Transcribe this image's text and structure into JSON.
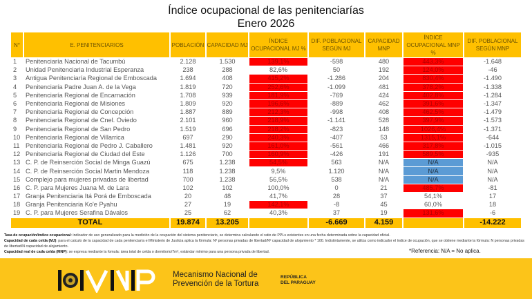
{
  "title": {
    "line1": "Índice ocupacional de las penitenciarías",
    "line2": "Enero 2026"
  },
  "headers": [
    "N°",
    "E. PENITENCIARIOS",
    "POBLACIÓN",
    "CAPACIDAD MJ",
    "ÍNDICE OCUPACIONAL MJ %",
    "DIF. POBLACIONAL SEGÚN MJ",
    "CAPACIDAD MNP",
    "ÍNDICE OCUPACIONAL MNP %",
    "DIF. POBLACIONAL SEGÚN MNP"
  ],
  "colors": {
    "header": "#ffc000",
    "over_capacity": "#ff0000",
    "not_applicable": "#5b9bd5",
    "footer": "#fcc419"
  },
  "rows": [
    [
      "1",
      "Penitenciaría Nacional de Tacumbú",
      "2.128",
      "1.530",
      "139,1%",
      "-598",
      "480",
      "443,3%",
      "-1.648"
    ],
    [
      "2",
      "Unidad Penitenciaria Industrial Esperanza",
      "238",
      "288",
      "82,6%",
      "50",
      "192",
      "124,0%",
      "-46"
    ],
    [
      "3",
      "Antigua Penitenciaría Regional de Emboscada",
      "1.694",
      "408",
      "415,2%",
      "-1.286",
      "204",
      "830,4%",
      "-1.490"
    ],
    [
      "4",
      "Penitenciaría Padre Juan A. de la Vega",
      "1.819",
      "720",
      "252,6%",
      "-1.099",
      "481",
      "378,2%",
      "-1.338"
    ],
    [
      "5",
      "Penitenciaría Regional de Encarnación",
      "1.708",
      "939",
      "181,9%",
      "-769",
      "424",
      "402,8%",
      "-1.284"
    ],
    [
      "6",
      "Penitenciaría Regional de Misiones",
      "1.809",
      "920",
      "196,6%",
      "-889",
      "462",
      "391,6%",
      "-1.347"
    ],
    [
      "7",
      "Penitenciaría Regional de Concepción",
      "1.887",
      "889",
      "212,3%",
      "-998",
      "408",
      "462,5%",
      "-1.479"
    ],
    [
      "8",
      "Penitenciaría Regional de Cnel. Oviedo",
      "2.101",
      "960",
      "218,9%",
      "-1.141",
      "528",
      "397,9%",
      "-1.573"
    ],
    [
      "9",
      "Penitenciaría Regional de San Pedro",
      "1.519",
      "696",
      "218,2%",
      "-823",
      "148",
      "1026,4%",
      "-1.371"
    ],
    [
      "10",
      "Penitenciaría Regional de Villarrica",
      "697",
      "290",
      "240,3%",
      "-407",
      "53",
      "1315,1%",
      "-644"
    ],
    [
      "11",
      "Penitenciaría Regional de Pedro J. Caballero",
      "1.481",
      "920",
      "161,0%",
      "-561",
      "466",
      "317,8%",
      "-1.015"
    ],
    [
      "12",
      "Penitenciaría Regional de Ciudad del Este",
      "1.126",
      "700",
      "160,9%",
      "-426",
      "191",
      "589,5%",
      "-935"
    ],
    [
      "13",
      "C. P. de Reinserción Social de Minga Guazú",
      "675",
      "1.238",
      "54,5%",
      "563",
      "N/A",
      "N/A",
      "N/A"
    ],
    [
      "14",
      "C. P. de Reinserción Social Martin Mendoza",
      "118",
      "1.238",
      "9,5%",
      "1.120",
      "N/A",
      "N/A",
      "N/A"
    ],
    [
      "15",
      "Complejo para mujeres privadas de libertad",
      "700",
      "1.238",
      "56,5%",
      "538",
      "N/A",
      "N/A",
      "N/A"
    ],
    [
      "16",
      "C. P. para Mujeres Juana M. de Lara",
      "102",
      "102",
      "100,0%",
      "0",
      "21",
      "485,7%",
      "-81"
    ],
    [
      "17",
      "Granja Penitenciaria Itá Porá de Emboscada",
      "20",
      "48",
      "41,7%",
      "28",
      "37",
      "54,1%",
      "17"
    ],
    [
      "18",
      "Granja Penitenciaria Ko'e Pyahu",
      "27",
      "19",
      "142,1%",
      "-8",
      "45",
      "60,0%",
      "18"
    ],
    [
      "19",
      "C. P. para Mujeres Serafina Dávalos",
      "25",
      "62",
      "40,3%",
      "37",
      "19",
      "131,6%",
      "-6"
    ]
  ],
  "highlight_mj": [
    "red",
    "",
    "red",
    "red",
    "red",
    "red",
    "red",
    "red",
    "red",
    "red",
    "red",
    "red",
    "red",
    "",
    "",
    "",
    "",
    "red",
    ""
  ],
  "highlight_mnp": [
    "red",
    "red",
    "red",
    "red",
    "red",
    "red",
    "red",
    "red",
    "red",
    "red",
    "red",
    "red",
    "blue",
    "blue",
    "blue",
    "red",
    "",
    "",
    "red"
  ],
  "total": {
    "label": "TOTAL",
    "poblacion": "19.874",
    "capacidad_mj": "13.205",
    "dif_mj": "-6.669",
    "capacidad_mnp": "4.159",
    "dif_mnp": "-14.222"
  },
  "notes": {
    "n1_label": "Tasa de ocupación/índice ocupacional",
    "n1_text": ": indicador de uso generalizado para la medición de la ocupación del sistema penitenciario, se determina calculando el ratio de PPLs existentes en una fecha determinada sobre la capacidad oficial.",
    "n2_label": "Capacidad de cada celda (MJ)",
    "n2_text": ": para el calculo de la capacidad de cada penitenciaría el Ministerio de Justicia aplica la fórmula: Nº personas privadas de libertad/Nº capacidad de alojamiento * 100. Indistintamente, se utiliza como indicador el índice de ocupación, que se obtiene mediante la fórmula: N personas privadas de libertad/N capacidad de alojamiento.",
    "n3_label": "Capacidad real de cada celda (MNP)",
    "n3_text": ": se expresa mediante la fomula: área total de celda o dormitorio/7m², estándar mínimo para una persona privada de libertad.",
    "reference_label": "*Referencia",
    "reference_text": ": N/A = No aplica."
  },
  "footer": {
    "logo_text": "MNP",
    "org_line1": "Mecanismo Nacional de",
    "org_line2": "Prevención de la Tortura",
    "country_line1": "REPÚBLICA",
    "country_line2": "DEL PARAGUAY"
  }
}
